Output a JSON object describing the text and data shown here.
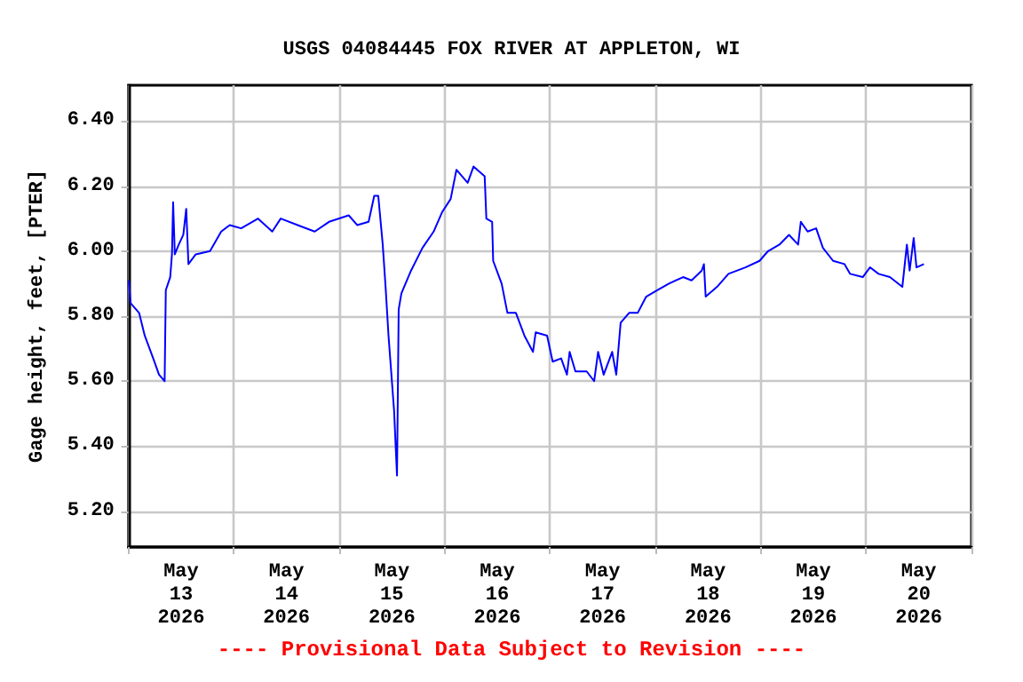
{
  "chart_data": {
    "type": "line",
    "title": "USGS 04084445 FOX RIVER AT APPLETON, WI",
    "ylabel": "Gage height, feet, [PTER]",
    "annotations": [
      "---- Provisional Data Subject to Revision ----"
    ],
    "xlim": [
      "2026-05-13T00:00",
      "2026-05-21T00:00"
    ],
    "xticks": [
      {
        "value": "2026-05-13T00:00",
        "label": null
      },
      {
        "value": "2026-05-13T12:00",
        "label": "May 13 2026"
      },
      {
        "value": "2026-05-14T00:00",
        "label": null
      },
      {
        "value": "2026-05-14T12:00",
        "label": "May 14 2026"
      },
      {
        "value": "2026-05-15T00:00",
        "label": null
      },
      {
        "value": "2026-05-15T12:00",
        "label": "May 15 2026"
      },
      {
        "value": "2026-05-16T00:00",
        "label": null
      },
      {
        "value": "2026-05-16T12:00",
        "label": "May 16 2026"
      },
      {
        "value": "2026-05-17T00:00",
        "label": null
      },
      {
        "value": "2026-05-17T12:00",
        "label": "May 17 2026"
      },
      {
        "value": "2026-05-18T00:00",
        "label": null
      },
      {
        "value": "2026-05-18T12:00",
        "label": "May 18 2026"
      },
      {
        "value": "2026-05-19T00:00",
        "label": null
      },
      {
        "value": "2026-05-19T12:00",
        "label": "May 19 2026"
      },
      {
        "value": "2026-05-20T00:00",
        "label": null
      },
      {
        "value": "2026-05-20T12:00",
        "label": "May 20 2026"
      },
      {
        "value": "2026-05-21T00:00",
        "label": null
      }
    ],
    "ylim": [
      5.09,
      6.51
    ],
    "yticks": [
      {
        "value": 5.2,
        "label": "5.20"
      },
      {
        "value": 5.4,
        "label": "5.40"
      },
      {
        "value": 5.6,
        "label": "5.60"
      },
      {
        "value": 5.8,
        "label": "5.80"
      },
      {
        "value": 6.0,
        "label": "6.00"
      },
      {
        "value": 6.2,
        "label": "6.20"
      },
      {
        "value": 6.4,
        "label": "6.40"
      }
    ],
    "grid": true,
    "marker": "none",
    "line_style": "solid",
    "series": [
      {
        "color": "#0000ff",
        "x": [
          "2026-05-13T00:05",
          "2026-05-13T00:30",
          "2026-05-13T02:26",
          "2026-05-13T03:43",
          "2026-05-13T05:39",
          "2026-05-13T06:58",
          "2026-05-13T08:15",
          "2026-05-13T08:31",
          "2026-05-13T09:31",
          "2026-05-13T09:55",
          "2026-05-13T10:11",
          "2026-05-13T10:34",
          "2026-05-13T11:28",
          "2026-05-13T12:30",
          "2026-05-13T13:10",
          "2026-05-13T13:40",
          "2026-05-13T15:20",
          "2026-05-13T18:35",
          "2026-05-13T21:08",
          "2026-05-13T23:04",
          "2026-05-14T01:40",
          "2026-05-14T05:32",
          "2026-05-14T08:45",
          "2026-05-14T10:41",
          "2026-05-14T14:33",
          "2026-05-14T18:26",
          "2026-05-14T21:41",
          "2026-05-15T02:10",
          "2026-05-15T04:06",
          "2026-05-15T06:42",
          "2026-05-15T07:59",
          "2026-05-15T08:54",
          "2026-05-15T09:55",
          "2026-05-15T10:34",
          "2026-05-15T11:14",
          "2026-05-15T12:30",
          "2026-05-15T13:10",
          "2026-05-15T13:33",
          "2026-05-15T14:10",
          "2026-05-15T16:22",
          "2026-05-15T18:58",
          "2026-05-15T21:31",
          "2026-05-15T23:27",
          "2026-05-16T01:23",
          "2026-05-16T02:42",
          "2026-05-16T05:16",
          "2026-05-16T06:35",
          "2026-05-16T09:08",
          "2026-05-16T09:31",
          "2026-05-16T10:50",
          "2026-05-16T11:04",
          "2026-05-16T13:00",
          "2026-05-16T14:19",
          "2026-05-16T16:15",
          "2026-05-16T18:11",
          "2026-05-16T20:08",
          "2026-05-16T20:45",
          "2026-05-16T23:21",
          "2026-05-17T00:37",
          "2026-05-17T02:33",
          "2026-05-17T03:52",
          "2026-05-17T04:29",
          "2026-05-17T05:48",
          "2026-05-17T08:22",
          "2026-05-17T10:04",
          "2026-05-17T10:58",
          "2026-05-17T12:14",
          "2026-05-17T14:10",
          "2026-05-17T15:06",
          "2026-05-17T16:06",
          "2026-05-17T18:02",
          "2026-05-17T19:59",
          "2026-05-17T21:55",
          "2026-05-18T00:30",
          "2026-05-18T03:06",
          "2026-05-18T06:19",
          "2026-05-18T08:15",
          "2026-05-18T10:34",
          "2026-05-18T11:04",
          "2026-05-18T11:28",
          "2026-05-18T14:03",
          "2026-05-18T16:39",
          "2026-05-18T20:31",
          "2026-05-18T23:44",
          "2026-05-19T01:40",
          "2026-05-19T04:16",
          "2026-05-19T06:26",
          "2026-05-19T08:31",
          "2026-05-19T09:08",
          "2026-05-19T10:41",
          "2026-05-19T12:37",
          "2026-05-19T14:10",
          "2026-05-19T16:29",
          "2026-05-19T19:05",
          "2026-05-19T20:22",
          "2026-05-19T23:14",
          "2026-05-20T00:53",
          "2026-05-20T02:50",
          "2026-05-20T05:25",
          "2026-05-20T08:15",
          "2026-05-20T09:17",
          "2026-05-20T09:55",
          "2026-05-20T10:50",
          "2026-05-20T11:28",
          "2026-05-20T13:10"
        ],
        "values": [
          5.91,
          5.84,
          5.81,
          5.74,
          5.67,
          5.62,
          5.6,
          5.88,
          5.92,
          5.99,
          6.15,
          5.99,
          6.02,
          6.05,
          6.13,
          5.96,
          5.99,
          6.0,
          6.06,
          6.08,
          6.07,
          6.1,
          6.06,
          6.1,
          6.08,
          6.06,
          6.09,
          6.11,
          6.08,
          6.09,
          6.17,
          6.17,
          6.02,
          5.89,
          5.74,
          5.51,
          5.31,
          5.82,
          5.87,
          5.94,
          6.01,
          6.06,
          6.12,
          6.16,
          6.25,
          6.21,
          6.26,
          6.23,
          6.1,
          6.09,
          5.97,
          5.9,
          5.81,
          5.81,
          5.74,
          5.69,
          5.75,
          5.74,
          5.66,
          5.67,
          5.62,
          5.69,
          5.63,
          5.63,
          5.6,
          5.69,
          5.62,
          5.69,
          5.62,
          5.78,
          5.81,
          5.81,
          5.86,
          5.88,
          5.9,
          5.92,
          5.91,
          5.94,
          5.96,
          5.86,
          5.89,
          5.93,
          5.95,
          5.97,
          6.0,
          6.02,
          6.05,
          6.02,
          6.09,
          6.06,
          6.07,
          6.01,
          5.97,
          5.96,
          5.93,
          5.92,
          5.95,
          5.93,
          5.92,
          5.89,
          6.02,
          5.94,
          6.04,
          5.95,
          5.96
        ]
      }
    ]
  }
}
